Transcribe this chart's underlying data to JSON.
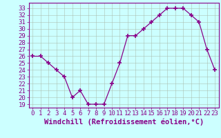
{
  "x": [
    0,
    1,
    2,
    3,
    4,
    5,
    6,
    7,
    8,
    9,
    10,
    11,
    12,
    13,
    14,
    15,
    16,
    17,
    18,
    19,
    20,
    21,
    22,
    23
  ],
  "y": [
    26,
    26,
    25,
    24,
    23,
    20,
    21,
    19,
    19,
    19,
    22,
    25,
    29,
    29,
    30,
    31,
    32,
    33,
    33,
    33,
    32,
    31,
    27,
    24
  ],
  "line_color": "#880088",
  "marker": "+",
  "marker_size": 4,
  "bg_color": "#ccffff",
  "grid_color": "#aabbaa",
  "xlabel": "Windchill (Refroidissement éolien,°C)",
  "ylim_min": 18.5,
  "ylim_max": 33.8,
  "xlim_min": -0.5,
  "xlim_max": 23.5,
  "yticks": [
    19,
    20,
    21,
    22,
    23,
    24,
    25,
    26,
    27,
    28,
    29,
    30,
    31,
    32,
    33
  ],
  "xtick_labels": [
    "0",
    "1",
    "2",
    "3",
    "4",
    "5",
    "6",
    "7",
    "8",
    "9",
    "10",
    "11",
    "12",
    "13",
    "14",
    "15",
    "16",
    "17",
    "18",
    "19",
    "20",
    "21",
    "22",
    "23"
  ],
  "tick_color": "#880088",
  "label_color": "#880088",
  "font_size": 6.5,
  "xlabel_font_size": 7.5,
  "lw": 0.9
}
